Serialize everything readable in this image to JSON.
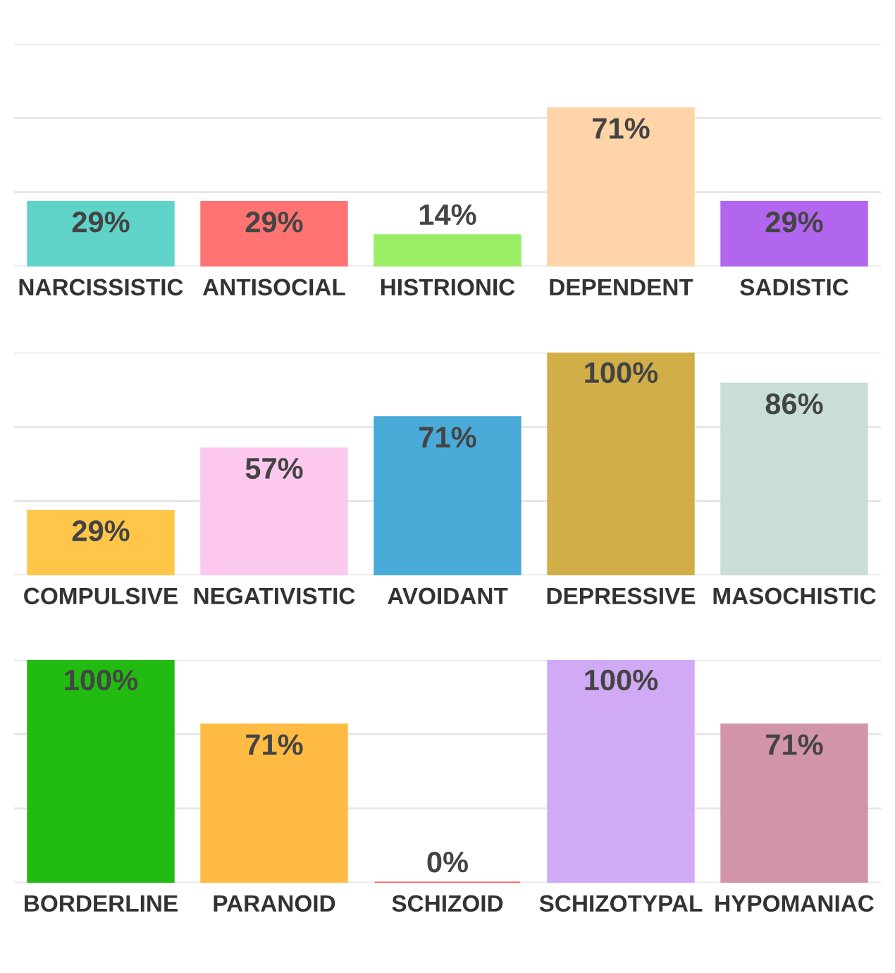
{
  "chart_data": [
    {
      "type": "bar",
      "categories": [
        "NARCISSISTIC",
        "ANTISOCIAL",
        "HISTRIONIC",
        "DEPENDENT",
        "SADISTIC"
      ],
      "values": [
        29,
        29,
        14,
        71,
        29
      ],
      "value_labels": [
        "29%",
        "29%",
        "14%",
        "71%",
        "29%"
      ],
      "colors": [
        "#5fd3c8",
        "#ff7373",
        "#99ee66",
        "#ffd4a8",
        "#b266ee"
      ],
      "ylim": [
        0,
        100
      ],
      "yticks": [
        {
          "value": 0,
          "label": null
        },
        {
          "value": 33.33,
          "label": null
        },
        {
          "value": 66.67,
          "label": null
        },
        {
          "value": 100,
          "label": null
        }
      ],
      "grid": "y",
      "tick_labels": "x"
    },
    {
      "type": "bar",
      "categories": [
        "COMPULSIVE",
        "NEGATIVISTIC",
        "AVOIDANT",
        "DEPRESSIVE",
        "MASOCHISTIC"
      ],
      "values": [
        29,
        57,
        71,
        100,
        86
      ],
      "value_labels": [
        "29%",
        "57%",
        "71%",
        "100%",
        "86%"
      ],
      "colors": [
        "#ffc64a",
        "#fdc8ee",
        "#4aabd8",
        "#d1ae48",
        "#c9dfd6"
      ],
      "ylim": [
        0,
        100
      ],
      "yticks": [
        {
          "value": 0,
          "label": null
        },
        {
          "value": 33.33,
          "label": null
        },
        {
          "value": 66.67,
          "label": null
        },
        {
          "value": 100,
          "label": null
        }
      ],
      "grid": "y",
      "tick_labels": "x"
    },
    {
      "type": "bar",
      "categories": [
        "BORDERLINE",
        "PARANOID",
        "SCHIZOID",
        "SCHIZOTYPAL",
        "HYPOMANIAC"
      ],
      "values": [
        100,
        71,
        0,
        100,
        71
      ],
      "value_labels": [
        "100%",
        "71%",
        "0%",
        "100%",
        "71%"
      ],
      "colors": [
        "#22bb11",
        "#ffbb44",
        "#ff5555",
        "#d1aaf5",
        "#d295a8"
      ],
      "ylim": [
        0,
        100
      ],
      "yticks": [
        {
          "value": 0,
          "label": null
        },
        {
          "value": 33.33,
          "label": null
        },
        {
          "value": 66.67,
          "label": null
        },
        {
          "value": 100,
          "label": null
        }
      ],
      "grid": "y",
      "tick_labels": "x"
    }
  ]
}
